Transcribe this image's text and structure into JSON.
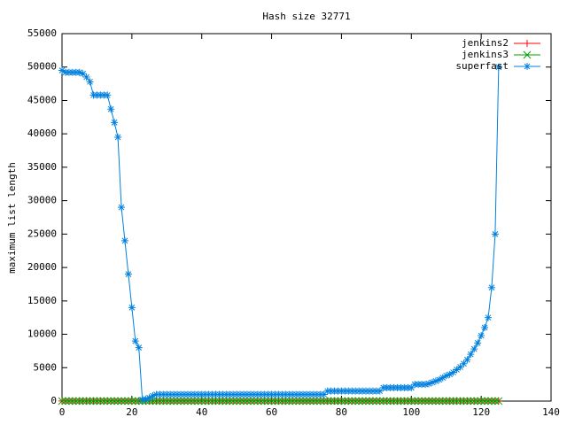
{
  "chart_data": {
    "type": "line",
    "title": "Hash size 32771",
    "y_label": "maximum list length",
    "x": [
      0,
      1,
      2,
      3,
      4,
      5,
      6,
      7,
      8,
      9,
      10,
      11,
      12,
      13,
      14,
      15,
      16,
      17,
      18,
      19,
      20,
      21,
      22,
      23,
      24,
      25,
      26,
      27,
      28,
      29,
      30,
      31,
      32,
      33,
      34,
      35,
      36,
      37,
      38,
      39,
      40,
      41,
      42,
      43,
      44,
      45,
      46,
      47,
      48,
      49,
      50,
      51,
      52,
      53,
      54,
      55,
      56,
      57,
      58,
      59,
      60,
      61,
      62,
      63,
      64,
      65,
      66,
      67,
      68,
      69,
      70,
      71,
      72,
      73,
      74,
      75,
      76,
      77,
      78,
      79,
      80,
      81,
      82,
      83,
      84,
      85,
      86,
      87,
      88,
      89,
      90,
      91,
      92,
      93,
      94,
      95,
      96,
      97,
      98,
      99,
      100,
      101,
      102,
      103,
      104,
      105,
      106,
      107,
      108,
      109,
      110,
      111,
      112,
      113,
      114,
      115,
      116,
      117,
      118,
      119,
      120,
      121,
      122,
      123,
      124,
      125
    ],
    "series": [
      {
        "name": "jenkins2",
        "color": "#ff0000",
        "marker": "plus",
        "values": [
          10,
          10,
          10,
          10,
          10,
          10,
          10,
          10,
          10,
          10,
          10,
          10,
          10,
          10,
          10,
          10,
          10,
          10,
          10,
          10,
          10,
          10,
          10,
          10,
          10,
          10,
          10,
          10,
          10,
          10,
          10,
          10,
          10,
          10,
          10,
          10,
          10,
          10,
          10,
          10,
          10,
          10,
          10,
          10,
          10,
          10,
          10,
          10,
          10,
          10,
          10,
          10,
          10,
          10,
          10,
          10,
          10,
          10,
          10,
          10,
          10,
          10,
          10,
          10,
          10,
          10,
          10,
          10,
          10,
          10,
          10,
          10,
          10,
          10,
          10,
          10,
          10,
          10,
          10,
          10,
          10,
          10,
          10,
          10,
          10,
          10,
          10,
          10,
          10,
          10,
          10,
          10,
          10,
          10,
          10,
          10,
          10,
          10,
          10,
          10,
          10,
          10,
          10,
          10,
          10,
          10,
          10,
          10,
          10,
          10,
          10,
          10,
          10,
          10,
          10,
          10,
          10,
          10,
          10,
          10,
          10,
          10,
          10,
          10,
          10,
          10
        ]
      },
      {
        "name": "jenkins3",
        "color": "#00a000",
        "marker": "cross",
        "values": [
          10,
          10,
          10,
          10,
          10,
          10,
          10,
          10,
          10,
          10,
          10,
          10,
          10,
          10,
          10,
          10,
          10,
          10,
          10,
          10,
          10,
          10,
          10,
          10,
          10,
          10,
          10,
          10,
          10,
          10,
          10,
          10,
          10,
          10,
          10,
          10,
          10,
          10,
          10,
          10,
          10,
          10,
          10,
          10,
          10,
          10,
          10,
          10,
          10,
          10,
          10,
          10,
          10,
          10,
          10,
          10,
          10,
          10,
          10,
          10,
          10,
          10,
          10,
          10,
          10,
          10,
          10,
          10,
          10,
          10,
          10,
          10,
          10,
          10,
          10,
          10,
          10,
          10,
          10,
          10,
          10,
          10,
          10,
          10,
          10,
          10,
          10,
          10,
          10,
          10,
          10,
          10,
          10,
          10,
          10,
          10,
          10,
          10,
          10,
          10,
          10,
          10,
          10,
          10,
          10,
          10,
          10,
          10,
          10,
          10,
          10,
          10,
          10,
          10,
          10,
          10,
          10,
          10,
          10,
          10,
          10,
          10,
          10,
          10,
          10,
          10
        ]
      },
      {
        "name": "superfast",
        "color": "#0080e0",
        "marker": "star",
        "values": [
          49500,
          49200,
          49200,
          49200,
          49200,
          49200,
          49000,
          48500,
          47800,
          45800,
          45800,
          45800,
          45800,
          45800,
          43700,
          41700,
          39500,
          29000,
          24000,
          19000,
          14000,
          9000,
          8000,
          200,
          300,
          500,
          800,
          1000,
          1000,
          1000,
          1000,
          1000,
          1000,
          1000,
          1000,
          1000,
          1000,
          1000,
          1000,
          1000,
          1000,
          1000,
          1000,
          1000,
          1000,
          1000,
          1000,
          1000,
          1000,
          1000,
          1000,
          1000,
          1000,
          1000,
          1000,
          1000,
          1000,
          1000,
          1000,
          1000,
          1000,
          1000,
          1000,
          1000,
          1000,
          1000,
          1000,
          1000,
          1000,
          1000,
          1000,
          1000,
          1000,
          1000,
          1000,
          1000,
          1500,
          1500,
          1500,
          1500,
          1500,
          1500,
          1500,
          1500,
          1500,
          1500,
          1500,
          1500,
          1500,
          1500,
          1500,
          1500,
          2000,
          2000,
          2000,
          2000,
          2000,
          2000,
          2000,
          2000,
          2000,
          2500,
          2500,
          2500,
          2500,
          2600,
          2800,
          3000,
          3200,
          3500,
          3800,
          4000,
          4300,
          4700,
          5100,
          5600,
          6200,
          7000,
          7800,
          8700,
          9800,
          11000,
          12500,
          17000,
          25000,
          50000
        ]
      }
    ],
    "xlim": [
      0,
      140
    ],
    "xticks": [
      0,
      20,
      40,
      60,
      80,
      100,
      120,
      140
    ],
    "ylim": [
      0,
      55000
    ],
    "yticks": [
      0,
      5000,
      10000,
      15000,
      20000,
      25000,
      30000,
      35000,
      40000,
      45000,
      50000,
      55000
    ],
    "legend": "top-right"
  }
}
